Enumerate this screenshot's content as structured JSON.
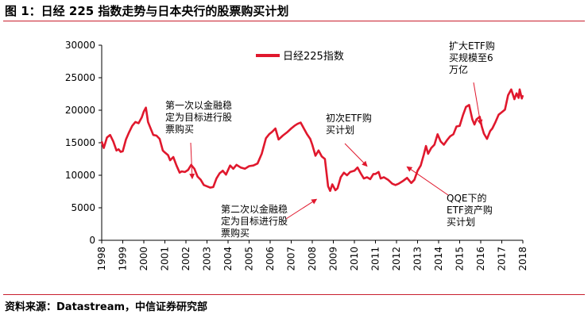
{
  "figure": {
    "title": "图 1：日经 225 指数走势与日本央行的股票购买计划",
    "source": "资料来源：Datastream，中信证券研究部"
  },
  "chart_data": {
    "type": "line",
    "xlabel": "",
    "ylabel": "",
    "xlim": [
      1998.0,
      2018.0
    ],
    "ylim": [
      0,
      30000
    ],
    "y_ticks": [
      0,
      5000,
      10000,
      15000,
      20000,
      25000,
      30000
    ],
    "x_ticks": [
      "1998",
      "1999",
      "2000",
      "2001",
      "2002",
      "2003",
      "2004",
      "2005",
      "2006",
      "2007",
      "2008",
      "2009",
      "2010",
      "2011",
      "2012",
      "2013",
      "2014",
      "2015",
      "2016",
      "2017",
      "2018"
    ],
    "legend": {
      "position": "top-center",
      "label": "日经225指数"
    },
    "grid": false,
    "series": [
      {
        "name": "日经225指数",
        "color": "#e0182d",
        "x": [
          1998.0,
          1998.1,
          1998.25,
          1998.4,
          1998.55,
          1998.7,
          1998.8,
          1998.9,
          1999.0,
          1999.15,
          1999.3,
          1999.45,
          1999.6,
          1999.75,
          1999.9,
          2000.0,
          2000.1,
          2000.2,
          2000.3,
          2000.45,
          2000.6,
          2000.75,
          2000.9,
          2001.0,
          2001.15,
          2001.25,
          2001.4,
          2001.55,
          2001.7,
          2001.8,
          2001.95,
          2002.1,
          2002.25,
          2002.4,
          2002.55,
          2002.7,
          2002.85,
          2003.0,
          2003.15,
          2003.3,
          2003.45,
          2003.6,
          2003.75,
          2003.9,
          2004.1,
          2004.25,
          2004.4,
          2004.6,
          2004.8,
          2005.0,
          2005.2,
          2005.4,
          2005.6,
          2005.8,
          2005.95,
          2006.1,
          2006.25,
          2006.4,
          2006.6,
          2006.8,
          2007.0,
          2007.15,
          2007.3,
          2007.45,
          2007.6,
          2007.75,
          2007.9,
          2008.0,
          2008.15,
          2008.3,
          2008.45,
          2008.6,
          2008.75,
          2008.85,
          2008.95,
          2009.1,
          2009.2,
          2009.35,
          2009.5,
          2009.65,
          2009.8,
          2010.0,
          2010.15,
          2010.3,
          2010.45,
          2010.6,
          2010.75,
          2010.9,
          2011.0,
          2011.15,
          2011.25,
          2011.4,
          2011.6,
          2011.8,
          2011.95,
          2012.1,
          2012.3,
          2012.5,
          2012.7,
          2012.85,
          2013.0,
          2013.15,
          2013.3,
          2013.4,
          2013.5,
          2013.65,
          2013.8,
          2013.95,
          2014.1,
          2014.25,
          2014.4,
          2014.55,
          2014.7,
          2014.85,
          2015.0,
          2015.15,
          2015.3,
          2015.45,
          2015.6,
          2015.7,
          2015.8,
          2015.95,
          2016.05,
          2016.15,
          2016.3,
          2016.45,
          2016.55,
          2016.7,
          2016.85,
          2017.0,
          2017.15,
          2017.3,
          2017.45,
          2017.6,
          2017.7,
          2017.8,
          2017.85,
          2017.95,
          2018.0
        ],
        "y": [
          15200,
          14200,
          15800,
          16200,
          15200,
          13800,
          14000,
          13600,
          13700,
          15500,
          16600,
          17600,
          18200,
          18000,
          18900,
          19800,
          20400,
          18200,
          17400,
          16200,
          16100,
          15600,
          13800,
          13500,
          13100,
          12300,
          12800,
          11500,
          10400,
          10600,
          10500,
          10800,
          11600,
          11000,
          9800,
          9300,
          8500,
          8300,
          8100,
          8200,
          9500,
          10300,
          10700,
          10100,
          11500,
          11000,
          11600,
          11200,
          11000,
          11400,
          11500,
          11800,
          13300,
          15700,
          16300,
          16700,
          17200,
          15500,
          16100,
          16600,
          17200,
          17600,
          17900,
          18100,
          17200,
          16300,
          15600,
          14700,
          13000,
          13800,
          12900,
          12500,
          8300,
          7600,
          8600,
          7700,
          8000,
          9700,
          10400,
          10000,
          10500,
          10700,
          11200,
          10300,
          9500,
          9700,
          9400,
          10200,
          10200,
          10500,
          9500,
          9700,
          9300,
          8700,
          8500,
          8700,
          9100,
          9600,
          8800,
          9300,
          10700,
          11500,
          13200,
          14500,
          13300,
          14200,
          14700,
          16300,
          15200,
          14700,
          15400,
          16000,
          16300,
          17500,
          17600,
          19200,
          20500,
          20800,
          18600,
          17800,
          18600,
          19000,
          17500,
          16400,
          15600,
          16800,
          17200,
          18200,
          19300,
          19700,
          20100,
          22300,
          23200,
          21700,
          22600,
          21900,
          23200,
          21800,
          22300
        ]
      }
    ],
    "annotations": [
      {
        "text_lines": [
          "第一次以金融稳",
          "定为目标进行股",
          "票购买"
        ],
        "target_x": 2002.3,
        "target_y": 9500
      },
      {
        "text_lines": [
          "第二次以金融稳",
          "定为目标进行股",
          "票购买"
        ],
        "target_x": 2008.2,
        "target_y": 6300
      },
      {
        "text_lines": [
          "初次ETF购",
          "买计划"
        ],
        "target_x": 2010.6,
        "target_y": 11400
      },
      {
        "text_lines": [
          "QQE下的",
          "ETF资产购",
          "买计划"
        ],
        "target_x": 2012.5,
        "target_y": 11300
      },
      {
        "text_lines": [
          "扩大ETF购",
          "买规模至6",
          "万亿"
        ],
        "target_x": 2016.0,
        "target_y": 17800
      }
    ]
  }
}
